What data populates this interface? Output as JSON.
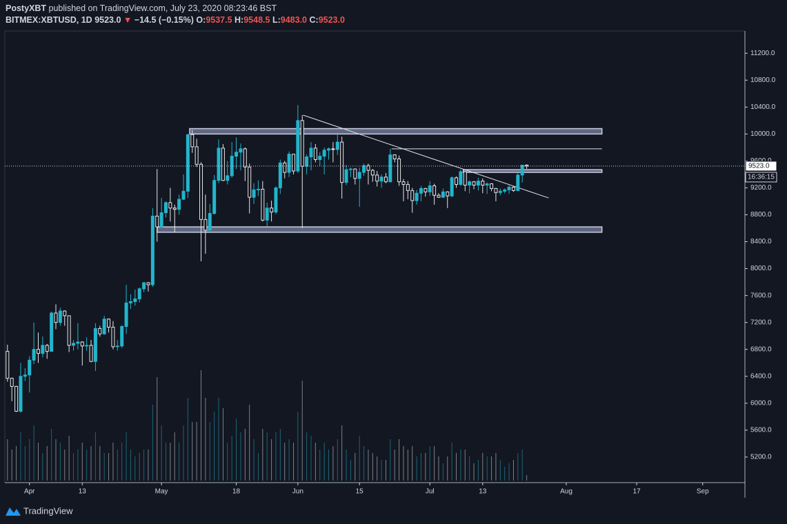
{
  "chart_data": {
    "type": "candlestick",
    "header": {
      "publisher": "PostyXBT",
      "published": "published on TradingView.com, July 23, 2020 08:23:46 BST",
      "symbol": "BITMEX:XBTUSD, 1D",
      "last": "9523.0",
      "arrow": "▼",
      "change": "−14.5 (−0.15%)",
      "o_label": "O:",
      "o": "9537.5",
      "h_label": "H:",
      "h": "9548.5",
      "l_label": "L:",
      "l": "9483.0",
      "c_label": "C:",
      "c": "9523.0"
    },
    "price_label": "9523.0",
    "countdown": "16:36:15",
    "brand": "TradingView",
    "up_color": "#22b5cc",
    "down_color": "#e8e8e8",
    "ylim": [
      4820,
      11530
    ],
    "xlim": [
      -0.6,
      167.6
    ],
    "yticks": [
      {
        "value": 5200,
        "label": "5200.0"
      },
      {
        "value": 5600,
        "label": "5600.0"
      },
      {
        "value": 6000,
        "label": "6000.0"
      },
      {
        "value": 6400,
        "label": "6400.0"
      },
      {
        "value": 6800,
        "label": "6800.0"
      },
      {
        "value": 7200,
        "label": "7200.0"
      },
      {
        "value": 7600,
        "label": "7600.0"
      },
      {
        "value": 8000,
        "label": "8000.0"
      },
      {
        "value": 8400,
        "label": "8400.0"
      },
      {
        "value": 8800,
        "label": "8800.0"
      },
      {
        "value": 9200,
        "label": "9200.0"
      },
      {
        "value": 9600,
        "label": "9600.0"
      },
      {
        "value": 10000,
        "label": "10000.0"
      },
      {
        "value": 10400,
        "label": "10400.0"
      },
      {
        "value": 10800,
        "label": "10800.0"
      },
      {
        "value": 11200,
        "label": "11200.0"
      }
    ],
    "xticks": [
      {
        "value": 5,
        "label": "Apr"
      },
      {
        "value": 17,
        "label": "13"
      },
      {
        "value": 35,
        "label": "May"
      },
      {
        "value": 52,
        "label": "18"
      },
      {
        "value": 66,
        "label": "Jun"
      },
      {
        "value": 80,
        "label": "15"
      },
      {
        "value": 96,
        "label": "Jul"
      },
      {
        "value": 108,
        "label": "13"
      },
      {
        "value": 127,
        "label": "Aug"
      },
      {
        "value": 143,
        "label": "17"
      },
      {
        "value": 158,
        "label": "Sep"
      }
    ],
    "ohlc": [
      [
        6770,
        6870,
        6320,
        6370
      ],
      [
        6370,
        6380,
        6030,
        6250
      ],
      [
        6250,
        6260,
        5870,
        5880
      ],
      [
        5880,
        6600,
        5860,
        6400
      ],
      [
        6400,
        6520,
        6330,
        6420
      ],
      [
        6420,
        6700,
        6160,
        6640
      ],
      [
        6640,
        7200,
        6580,
        6800
      ],
      [
        6800,
        7050,
        6600,
        6740
      ],
      [
        6740,
        6990,
        6680,
        6860
      ],
      [
        6860,
        6880,
        6660,
        6770
      ],
      [
        6770,
        7360,
        6770,
        7340
      ],
      [
        7340,
        7470,
        7100,
        7200
      ],
      [
        7200,
        7420,
        7150,
        7370
      ],
      [
        7370,
        7380,
        7150,
        7300
      ],
      [
        7300,
        7300,
        6760,
        6860
      ],
      [
        6860,
        6940,
        6780,
        6890
      ],
      [
        6890,
        7190,
        6800,
        6910
      ],
      [
        6910,
        6920,
        6560,
        6850
      ],
      [
        6850,
        6980,
        6780,
        6860
      ],
      [
        6860,
        6940,
        6610,
        6620
      ],
      [
        6620,
        7190,
        6480,
        7110
      ],
      [
        7110,
        7150,
        6990,
        7030
      ],
      [
        7030,
        7300,
        7020,
        7250
      ],
      [
        7250,
        7260,
        7050,
        7130
      ],
      [
        7130,
        7220,
        6800,
        6840
      ],
      [
        6840,
        6940,
        6780,
        6850
      ],
      [
        6850,
        7160,
        6820,
        7140
      ],
      [
        7140,
        7760,
        7030,
        7490
      ],
      [
        7490,
        7620,
        7400,
        7510
      ],
      [
        7510,
        7690,
        7450,
        7550
      ],
      [
        7550,
        7720,
        7500,
        7700
      ],
      [
        7700,
        7800,
        7650,
        7790
      ],
      [
        7790,
        7800,
        7660,
        7760
      ],
      [
        7760,
        8900,
        7730,
        8780
      ],
      [
        8780,
        9480,
        8400,
        8620
      ],
      [
        8620,
        9050,
        8610,
        8830
      ],
      [
        8830,
        9000,
        8760,
        8980
      ],
      [
        8980,
        9200,
        8700,
        8900
      ],
      [
        8900,
        8950,
        8540,
        8880
      ],
      [
        8880,
        9100,
        8800,
        9030
      ],
      [
        9030,
        9400,
        9020,
        9150
      ],
      [
        9150,
        10000,
        9050,
        9990
      ],
      [
        9990,
        10060,
        9720,
        9810
      ],
      [
        9810,
        9930,
        9510,
        9550
      ],
      [
        9550,
        9580,
        8110,
        8730
      ],
      [
        8730,
        9100,
        8220,
        8570
      ],
      [
        8570,
        8960,
        8560,
        8820
      ],
      [
        8820,
        9390,
        8800,
        9310
      ],
      [
        9310,
        9920,
        9270,
        9790
      ],
      [
        9790,
        9850,
        9300,
        9310
      ],
      [
        9310,
        9600,
        9250,
        9380
      ],
      [
        9380,
        9880,
        9350,
        9670
      ],
      [
        9670,
        9950,
        9480,
        9730
      ],
      [
        9730,
        9860,
        9460,
        9780
      ],
      [
        9780,
        9800,
        9300,
        9510
      ],
      [
        9510,
        9560,
        8820,
        9060
      ],
      [
        9060,
        9270,
        8960,
        9170
      ],
      [
        9170,
        9310,
        9080,
        9180
      ],
      [
        9180,
        9300,
        8700,
        8720
      ],
      [
        8720,
        8980,
        8630,
        8900
      ],
      [
        8900,
        9010,
        8700,
        8840
      ],
      [
        8840,
        9220,
        8810,
        9200
      ],
      [
        9200,
        9620,
        9110,
        9570
      ],
      [
        9570,
        9600,
        9340,
        9430
      ],
      [
        9430,
        9740,
        9360,
        9700
      ],
      [
        9700,
        9700,
        9400,
        9450
      ],
      [
        9450,
        10430,
        9420,
        10200
      ],
      [
        10200,
        10280,
        8600,
        9520
      ],
      [
        9520,
        9700,
        9400,
        9660
      ],
      [
        9660,
        9880,
        9460,
        9790
      ],
      [
        9790,
        9850,
        9580,
        9620
      ],
      [
        9620,
        9730,
        9530,
        9670
      ],
      [
        9670,
        9800,
        9400,
        9760
      ],
      [
        9760,
        9800,
        9620,
        9780
      ],
      [
        9780,
        9880,
        9580,
        9770
      ],
      [
        9770,
        9990,
        9690,
        9880
      ],
      [
        9880,
        9960,
        9040,
        9280
      ],
      [
        9280,
        9540,
        9240,
        9470
      ],
      [
        9470,
        9500,
        9360,
        9480
      ],
      [
        9480,
        9490,
        9250,
        9340
      ],
      [
        9340,
        9500,
        8920,
        9430
      ],
      [
        9430,
        9560,
        9380,
        9530
      ],
      [
        9530,
        9560,
        9250,
        9460
      ],
      [
        9460,
        9480,
        9290,
        9390
      ],
      [
        9390,
        9450,
        9220,
        9300
      ],
      [
        9300,
        9400,
        9200,
        9360
      ],
      [
        9360,
        9420,
        9270,
        9290
      ],
      [
        9290,
        9780,
        9280,
        9690
      ],
      [
        9690,
        9700,
        9580,
        9630
      ],
      [
        9630,
        9680,
        9230,
        9290
      ],
      [
        9290,
        9330,
        9000,
        9250
      ],
      [
        9250,
        9300,
        9030,
        9160
      ],
      [
        9160,
        9200,
        8830,
        9010
      ],
      [
        9010,
        9170,
        8950,
        9120
      ],
      [
        9120,
        9230,
        9000,
        9190
      ],
      [
        9190,
        9200,
        9070,
        9140
      ],
      [
        9140,
        9300,
        9080,
        9230
      ],
      [
        9230,
        9260,
        8950,
        9090
      ],
      [
        9090,
        9120,
        9050,
        9060
      ],
      [
        9060,
        9190,
        9050,
        9140
      ],
      [
        9140,
        9150,
        8900,
        9080
      ],
      [
        9080,
        9370,
        9060,
        9350
      ],
      [
        9350,
        9370,
        9200,
        9250
      ],
      [
        9250,
        9470,
        9230,
        9440
      ],
      [
        9440,
        9450,
        9150,
        9240
      ],
      [
        9240,
        9310,
        9120,
        9290
      ],
      [
        9290,
        9300,
        9180,
        9240
      ],
      [
        9240,
        9350,
        9160,
        9300
      ],
      [
        9300,
        9340,
        9120,
        9240
      ],
      [
        9240,
        9280,
        9110,
        9260
      ],
      [
        9260,
        9270,
        9150,
        9190
      ],
      [
        9190,
        9200,
        9000,
        9130
      ],
      [
        9130,
        9190,
        9090,
        9150
      ],
      [
        9150,
        9190,
        9120,
        9170
      ],
      [
        9170,
        9240,
        9110,
        9210
      ],
      [
        9210,
        9220,
        9140,
        9160
      ],
      [
        9160,
        9420,
        9150,
        9390
      ],
      [
        9390,
        9540,
        9280,
        9537.5
      ],
      [
        9537.5,
        9548.5,
        9483,
        9523
      ]
    ],
    "volume_lim": [
      0,
      170
    ],
    "volume": [
      60,
      45,
      50,
      70,
      50,
      60,
      80,
      55,
      40,
      50,
      75,
      60,
      55,
      45,
      65,
      40,
      45,
      55,
      45,
      50,
      70,
      50,
      40,
      40,
      55,
      45,
      55,
      70,
      45,
      35,
      40,
      45,
      45,
      110,
      150,
      80,
      55,
      55,
      70,
      55,
      80,
      120,
      85,
      85,
      160,
      120,
      85,
      100,
      120,
      105,
      55,
      65,
      90,
      70,
      75,
      110,
      60,
      40,
      75,
      70,
      60,
      70,
      75,
      55,
      60,
      55,
      100,
      145,
      70,
      65,
      55,
      45,
      55,
      45,
      50,
      60,
      80,
      45,
      30,
      40,
      65,
      50,
      45,
      40,
      35,
      30,
      30,
      60,
      45,
      60,
      50,
      45,
      50,
      35,
      40,
      40,
      50,
      50,
      35,
      25,
      35,
      55,
      40,
      45,
      45,
      35,
      25,
      30,
      40,
      35,
      35,
      40,
      30,
      20,
      25,
      30,
      40,
      45,
      8
    ],
    "drawings": [
      {
        "type": "rect",
        "x": [
          41.4,
          135.1
        ],
        "y": [
          10000,
          10080
        ]
      },
      {
        "type": "rect",
        "x": [
          34,
          135.1
        ],
        "y": [
          8540,
          8620
        ]
      },
      {
        "type": "rect",
        "x": [
          103.6,
          135.1
        ],
        "y": [
          9430,
          9470
        ]
      },
      {
        "type": "line",
        "x": [
          67.2,
          123
        ],
        "y": [
          10280,
          9050
        ]
      },
      {
        "type": "line",
        "x": [
          87.3,
          135.1
        ],
        "y": [
          9780,
          9780
        ]
      }
    ]
  }
}
